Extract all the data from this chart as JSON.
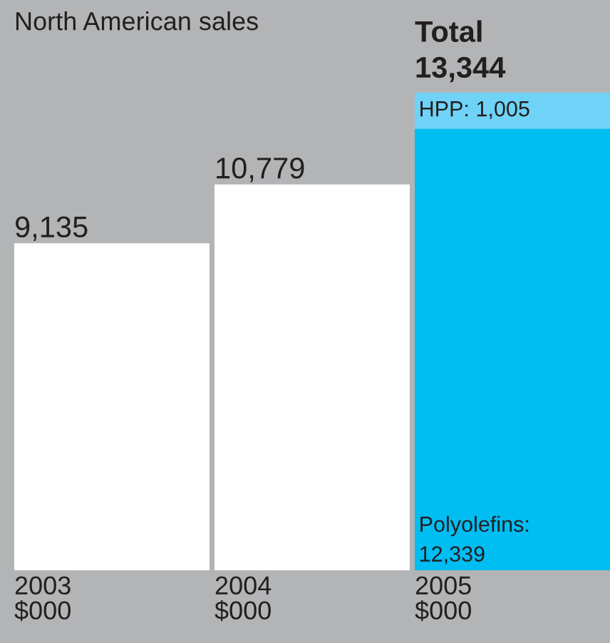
{
  "chart_data": {
    "type": "bar",
    "title": "North American sales",
    "categories": [
      "2003\n$000",
      "2004\n$000",
      "2005\n$000"
    ],
    "stacked": true,
    "series": [
      {
        "name": "Polyolefins:",
        "colors": [
          "#ffffff",
          "#ffffff",
          "#00bdf2"
        ],
        "values": [
          9135,
          10779,
          12339
        ],
        "value_labels": [
          "9,135",
          "10,779",
          "12,339"
        ]
      },
      {
        "name": "HPP:",
        "color": "#6fd3f7",
        "values": [
          null,
          null,
          1005
        ],
        "value_labels": [
          null,
          null,
          "1,005"
        ]
      }
    ],
    "totals": [
      null,
      null,
      "13,344"
    ],
    "annotations": [
      "Total"
    ]
  }
}
